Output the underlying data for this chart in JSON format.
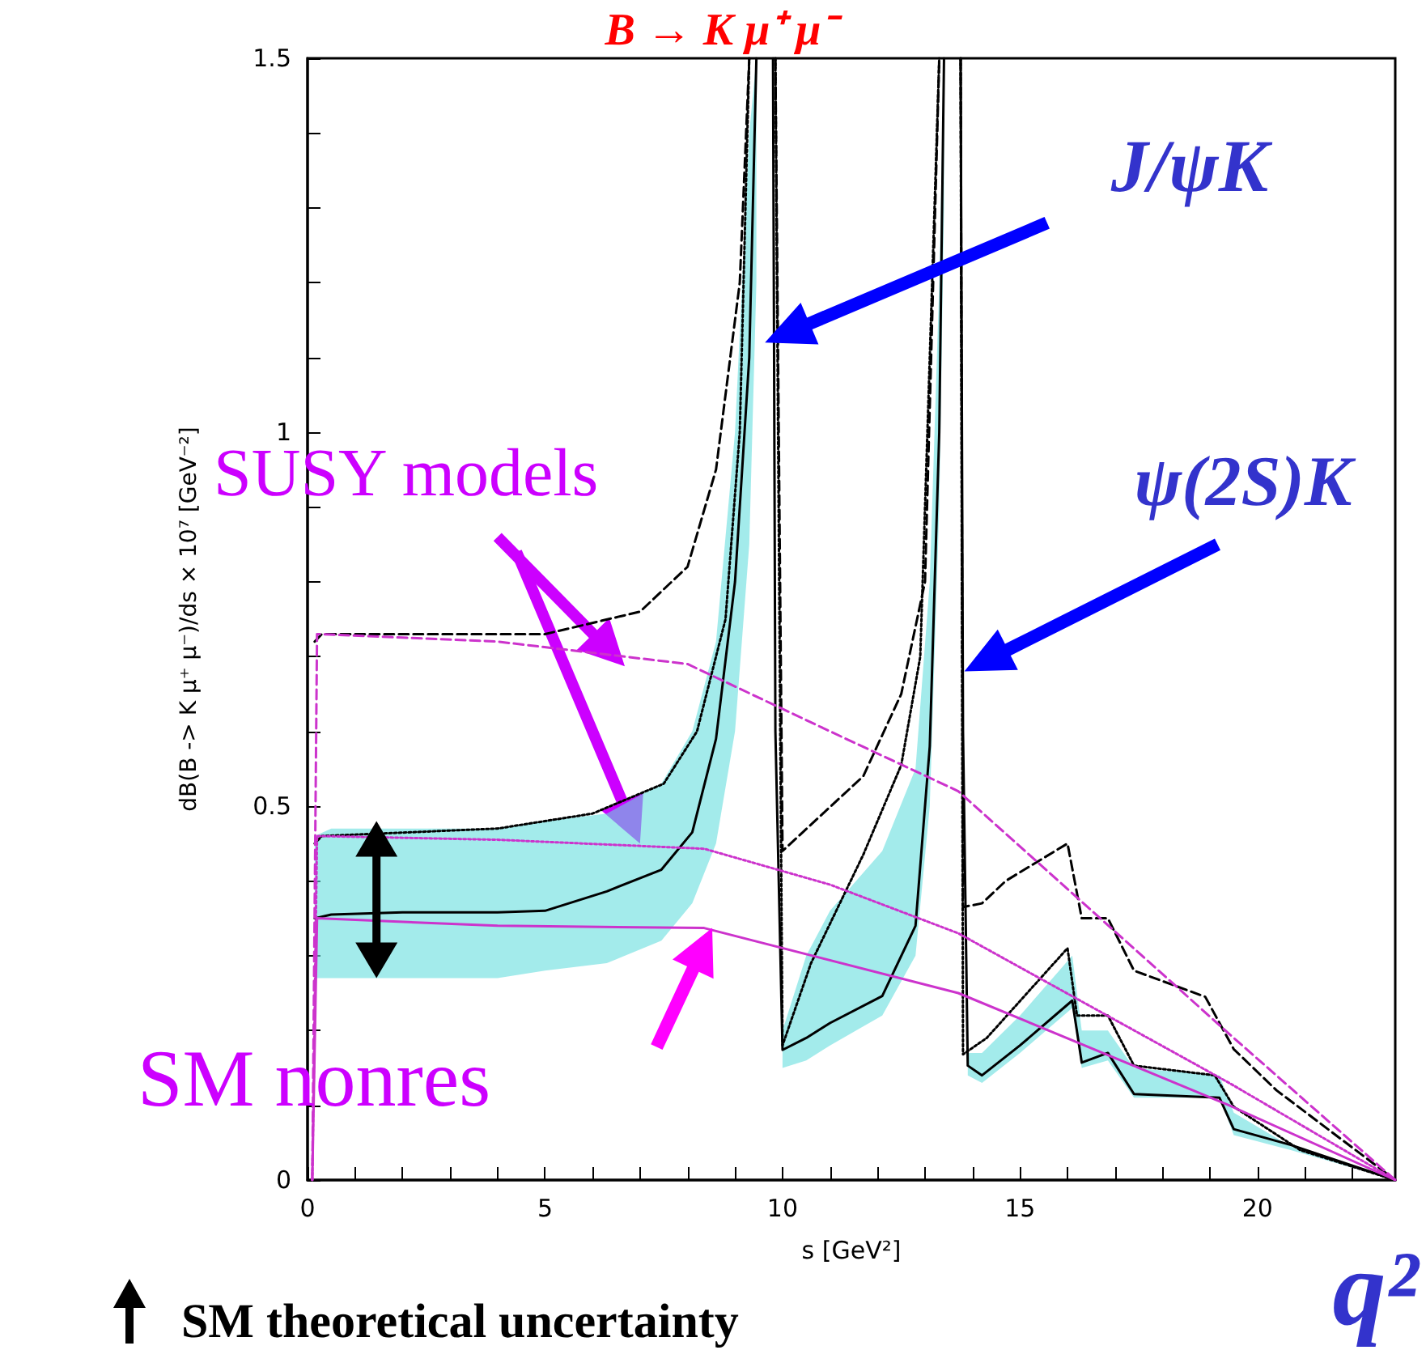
{
  "chart_data": {
    "type": "line",
    "title": "B → K μ⁺ μ⁻",
    "xlabel": "s [GeV²]",
    "ylabel": "dB(B -> K μ⁺ μ⁻)/ds × 10⁷ [GeV⁻²]",
    "xlim": [
      0,
      22.9
    ],
    "ylim": [
      0,
      1.5
    ],
    "xticks": [
      0,
      {
        "value": 1,
        "label": null
      },
      {
        "value": 2,
        "label": null
      },
      {
        "value": 3,
        "label": null
      },
      {
        "value": 4,
        "label": null
      },
      5,
      {
        "value": 6,
        "label": null
      },
      {
        "value": 7,
        "label": null
      },
      {
        "value": 8,
        "label": null
      },
      {
        "value": 9,
        "label": null
      },
      10,
      {
        "value": 11,
        "label": null
      },
      {
        "value": 12,
        "label": null
      },
      {
        "value": 13,
        "label": null
      },
      {
        "value": 14,
        "label": null
      },
      15,
      {
        "value": 16,
        "label": null
      },
      {
        "value": 17,
        "label": null
      },
      {
        "value": 18,
        "label": null
      },
      {
        "value": 19,
        "label": null
      },
      20,
      {
        "value": 21,
        "label": null
      },
      {
        "value": 22,
        "label": null
      }
    ],
    "yticks": [
      0,
      {
        "value": 0.1,
        "label": null
      },
      {
        "value": 0.2,
        "label": null
      },
      {
        "value": 0.3,
        "label": null
      },
      {
        "value": 0.4,
        "label": null
      },
      0.5,
      {
        "value": 0.6,
        "label": null
      },
      {
        "value": 0.7,
        "label": null
      },
      {
        "value": 0.8,
        "label": null
      },
      {
        "value": 0.9,
        "label": null
      },
      1,
      {
        "value": 1.1,
        "label": null
      },
      {
        "value": 1.2,
        "label": null
      },
      {
        "value": 1.3,
        "label": null
      },
      {
        "value": 1.4,
        "label": null
      },
      1.5
    ],
    "series": [
      {
        "color": "#000000",
        "line_style": "solid",
        "x": [
          0.15,
          0.5,
          2,
          4,
          5,
          6.3,
          7.45,
          8.1,
          8.6,
          9.0,
          9.3,
          9.45,
          9.6,
          9.8,
          9.85,
          10.0,
          10.5,
          11,
          12.1,
          12.8,
          13.1,
          13.3,
          13.4,
          13.55,
          13.75,
          13.8,
          13.9,
          14.2,
          15,
          16.1,
          16.3,
          16.85,
          17.4,
          19.2,
          19.5,
          20.7,
          22.9
        ],
        "values": [
          0.35,
          0.355,
          0.358,
          0.358,
          0.36,
          0.386,
          0.415,
          0.465,
          0.59,
          0.8,
          1.1,
          1.5,
          null,
          1.5,
          0.6,
          0.174,
          0.19,
          0.21,
          0.246,
          0.34,
          0.58,
          1.0,
          1.5,
          null,
          1.5,
          0.6,
          0.153,
          0.14,
          0.18,
          0.24,
          0.157,
          0.17,
          0.115,
          0.11,
          0.068,
          0.047,
          0
        ],
        "lower": [
          0.27,
          0.27,
          0.27,
          0.27,
          0.28,
          0.29,
          0.32,
          0.37,
          0.45,
          0.6,
          0.85,
          1.2,
          null,
          null,
          null,
          0.15,
          0.16,
          0.18,
          0.22,
          0.3,
          0.5,
          0.9,
          1.3,
          null,
          null,
          null,
          0.14,
          0.13,
          0.17,
          0.23,
          0.15,
          0.16,
          0.11,
          0.11,
          0.06,
          0.04,
          0
        ],
        "upper": [
          0.46,
          0.47,
          0.47,
          0.47,
          0.48,
          0.49,
          0.53,
          0.6,
          0.72,
          1.0,
          1.4,
          1.5,
          null,
          null,
          null,
          0.2,
          0.3,
          0.36,
          0.44,
          0.55,
          0.8,
          1.2,
          1.5,
          null,
          null,
          null,
          0.17,
          0.17,
          0.22,
          0.3,
          0.2,
          0.2,
          0.15,
          0.14,
          0.09,
          0.045,
          0
        ]
      },
      {
        "color": "#000000",
        "line_style": "dashed",
        "x": [
          0.15,
          0.3,
          2,
          5,
          7,
          8,
          8.6,
          9.1,
          9.3,
          9.5,
          9.85,
          10.0,
          11.7,
          12.5,
          13.0,
          13.3,
          13.5,
          13.75,
          13.8,
          14.2,
          14.7,
          16.0,
          16.3,
          16.85,
          17.4,
          18.9,
          19.5,
          20.4,
          22.9
        ],
        "values": [
          0.72,
          0.73,
          0.73,
          0.73,
          0.76,
          0.82,
          0.95,
          1.2,
          1.5,
          null,
          1.5,
          0.44,
          0.54,
          0.65,
          0.8,
          1.5,
          null,
          1.5,
          0.365,
          0.37,
          0.4,
          0.45,
          0.35,
          0.35,
          0.28,
          0.245,
          0.175,
          0.12,
          0
        ]
      },
      {
        "color": "#000000",
        "line_style": "dotted",
        "x": [
          0.15,
          0.3,
          4,
          6,
          7.5,
          8.2,
          8.8,
          9.1,
          9.3,
          9.5,
          9.85,
          10.0,
          10.6,
          11.7,
          12.5,
          12.9,
          13.3,
          13.5,
          13.75,
          13.8,
          14.3,
          16.0,
          16.2,
          16.85,
          17.4,
          19.1,
          19.5,
          20.9,
          22.9
        ],
        "values": [
          0.45,
          0.46,
          0.47,
          0.49,
          0.53,
          0.6,
          0.75,
          1.0,
          1.5,
          null,
          1.5,
          0.18,
          0.29,
          0.435,
          0.555,
          0.7,
          1.5,
          null,
          1.5,
          0.168,
          0.19,
          0.31,
          0.22,
          0.22,
          0.153,
          0.14,
          0.098,
          0.04,
          0
        ]
      },
      {
        "color": "#cc33cc",
        "line_style": "solid",
        "x": [
          0.1,
          0.2,
          4,
          8.35,
          13.7,
          19.4,
          22.9
        ],
        "values": [
          0,
          0.35,
          0.34,
          0.337,
          0.25,
          0.1,
          0
        ]
      },
      {
        "color": "#cc33cc",
        "line_style": "dashed",
        "x": [
          0.1,
          0.2,
          4,
          8,
          11,
          13.7,
          19.5,
          22.9
        ],
        "values": [
          0,
          0.73,
          0.72,
          0.69,
          0.6,
          0.52,
          0.19,
          0
        ]
      },
      {
        "color": "#cc33cc",
        "line_style": "dotted",
        "x": [
          0.1,
          0.2,
          4,
          8.35,
          11,
          13.7,
          19.4,
          22.9
        ],
        "values": [
          0,
          0.46,
          0.455,
          0.443,
          0.395,
          0.33,
          0.13,
          0
        ]
      }
    ],
    "annotations": [
      "J/ψK",
      "ψ(2S)K",
      "SUSY models",
      "SM nonres",
      "SM theoretical uncertainty",
      "q²"
    ]
  }
}
